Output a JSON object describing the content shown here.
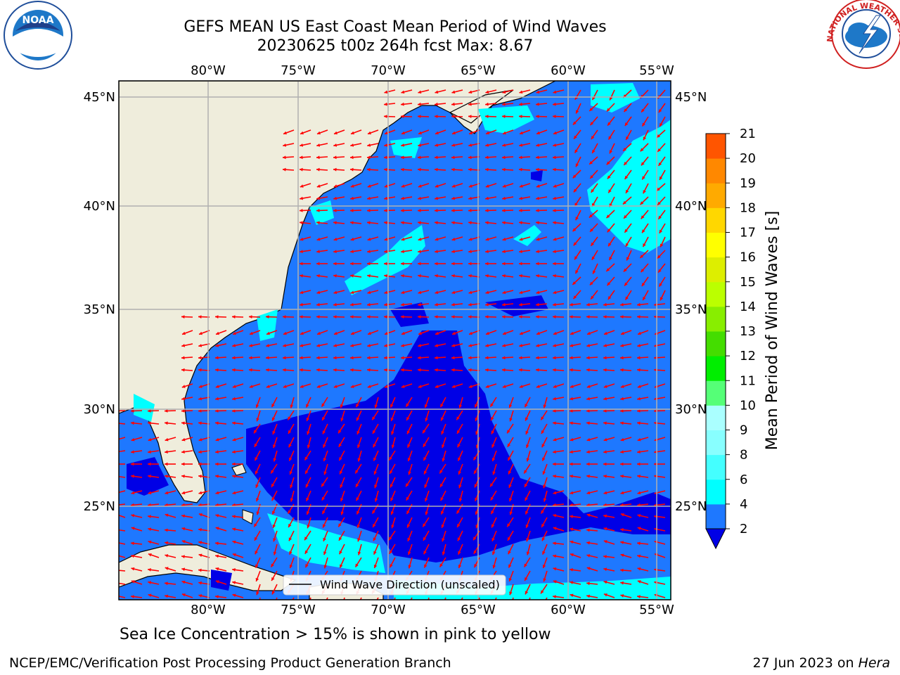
{
  "title": {
    "line1": "GEFS MEAN US East Coast Mean Period of Wind Waves",
    "line2": "20230625 t00z 264h fcst   Max: 8.67"
  },
  "map": {
    "lon_labels": [
      "80°W",
      "75°W",
      "70°W",
      "65°W",
      "60°W",
      "55°W"
    ],
    "lat_labels": [
      "45°N",
      "40°N",
      "35°N",
      "30°N",
      "25°N"
    ],
    "legend_label": "Wind Wave Direction (unscaled)",
    "colors": {
      "land": "#efeddc",
      "sea_low": "#0000e6",
      "sea_mid": "#1e78ff",
      "sea_high": "#00ffff",
      "arrow": "#ff0000"
    }
  },
  "colorbar": {
    "label": "Mean Period of Wind Waves [s]",
    "ticks": [
      "2",
      "4",
      "6",
      "8",
      "9",
      "10",
      "11",
      "12",
      "13",
      "14",
      "15",
      "16",
      "17",
      "18",
      "19",
      "20",
      "21"
    ],
    "colors": [
      "#1e78ff",
      "#00ffff",
      "#44ffff",
      "#88ffff",
      "#aaffff",
      "#55ff77",
      "#00ee00",
      "#44dd00",
      "#88ee00",
      "#bbff00",
      "#ddee00",
      "#ffff00",
      "#ffd700",
      "#ffaa00",
      "#ff8800",
      "#ff5500",
      "#ff2200",
      "#ff0000"
    ],
    "under_color": "#0000e6"
  },
  "note": "Sea Ice Concentration > 15% is shown in pink to yellow",
  "footer": {
    "left": "NCEP/EMC/Verification Post Processing Product Generation Branch",
    "right_prefix": "27 Jun 2023 on ",
    "right_italic": "Hera"
  },
  "logos": {
    "noaa": "NOAA",
    "nws": "NATIONAL WEATHER SERVICE"
  }
}
